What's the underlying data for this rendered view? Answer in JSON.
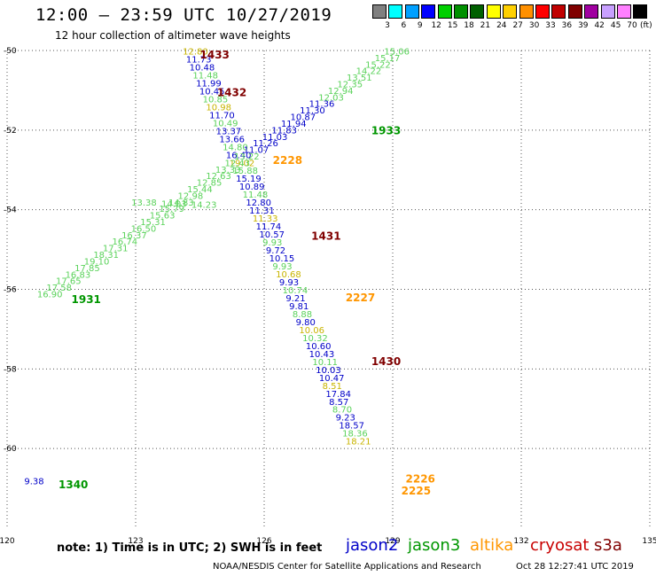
{
  "header": {
    "title": "12:00 – 23:59 UTC 10/27/2019",
    "subtitle": "12 hour collection of altimeter wave heights"
  },
  "legend": {
    "unit": "(ft)",
    "swatches": [
      {
        "color": "#808080",
        "label": "3"
      },
      {
        "color": "#00ffff",
        "label": "6"
      },
      {
        "color": "#00a0ff",
        "label": "9"
      },
      {
        "color": "#0000ff",
        "label": "12"
      },
      {
        "color": "#00d000",
        "label": "15"
      },
      {
        "color": "#009000",
        "label": "18"
      },
      {
        "color": "#006000",
        "label": "21"
      },
      {
        "color": "#ffff00",
        "label": "24"
      },
      {
        "color": "#ffd000",
        "label": "27"
      },
      {
        "color": "#ff9000",
        "label": "30"
      },
      {
        "color": "#ff0000",
        "label": "33"
      },
      {
        "color": "#c00000",
        "label": "36"
      },
      {
        "color": "#800000",
        "label": "39"
      },
      {
        "color": "#a000a0",
        "label": "42"
      },
      {
        "color": "#c8a0ff",
        "label": "45"
      },
      {
        "color": "#ff80ff",
        "label": "70"
      },
      {
        "color": "#000000",
        "label": ""
      }
    ]
  },
  "map": {
    "lon_range": [
      120,
      135
    ],
    "lat_range": [
      -62,
      -50
    ],
    "lon_ticks": [
      "120",
      "123",
      "126",
      "129",
      "132",
      "135"
    ],
    "lat_ticks": [
      "-50",
      "-52",
      "-54",
      "-56",
      "-58",
      "-60"
    ],
    "colors": {
      "jason2": "#0000c8",
      "jason3": "#009600",
      "altika": "#ff9600",
      "cryosat": "#c80000",
      "s3a": "#800000",
      "light_green": "#5ad25a"
    },
    "orbit_labels": [
      {
        "text": "1433",
        "lon": 124.5,
        "lat": -50.2,
        "sat": "s3a"
      },
      {
        "text": "1432",
        "lon": 124.9,
        "lat": -51.15,
        "sat": "s3a"
      },
      {
        "text": "2228",
        "lon": 126.2,
        "lat": -52.85,
        "sat": "altika"
      },
      {
        "text": "1933",
        "lon": 128.5,
        "lat": -52.1,
        "sat": "jason3"
      },
      {
        "text": "1431",
        "lon": 127.1,
        "lat": -54.75,
        "sat": "s3a"
      },
      {
        "text": "1931",
        "lon": 121.5,
        "lat": -56.35,
        "sat": "jason3"
      },
      {
        "text": "2227",
        "lon": 127.9,
        "lat": -56.3,
        "sat": "altika"
      },
      {
        "text": "1430",
        "lon": 128.5,
        "lat": -57.9,
        "sat": "s3a"
      },
      {
        "text": "2226",
        "lon": 129.3,
        "lat": -60.85,
        "sat": "altika"
      },
      {
        "text": "2225",
        "lon": 129.2,
        "lat": -61.15,
        "sat": "altika"
      },
      {
        "text": "1340",
        "lon": 121.2,
        "lat": -61.0,
        "sat": "jason3"
      }
    ],
    "tracks": {
      "s3a_pass": {
        "start": [
          124.1,
          -50.1
        ],
        "end": [
          127.9,
          -59.9
        ],
        "color": "altika",
        "values": [
          "12.80",
          "11.73",
          "10.48",
          "11.48",
          "11.99",
          "10.45",
          "10.85",
          "10.98",
          "11.70",
          "10.49",
          "13.37",
          "13.66",
          "14.80",
          "16.40",
          "19.02",
          "15.88",
          "15.19",
          "10.89",
          "11.48",
          "12.80",
          "11.31",
          "11.33",
          "11.74",
          "10.57",
          "9.93",
          "9.72",
          "10.15",
          "9.93",
          "10.68",
          "9.93",
          "10.74",
          "9.21",
          "9.81",
          "8.88",
          "9.80",
          "10.06",
          "10.32",
          "10.60",
          "10.43",
          "10.11",
          "10.03",
          "10.47",
          "8.51",
          "17.84",
          "8.57",
          "8.70",
          "9.23",
          "18.57",
          "18.36",
          "18.21"
        ]
      },
      "jason_pass": {
        "start": [
          120.7,
          -56.2
        ],
        "end": [
          128.8,
          -50.1
        ],
        "color": "jason2",
        "values": [
          "16.90",
          "17.58",
          "17.65",
          "16.83",
          "17.85",
          "19.10",
          "18.31",
          "17.31",
          "16.74",
          "16.37",
          "16.50",
          "15.31",
          "15.63",
          "15.79",
          "14.83",
          "12.98",
          "15.44",
          "12.85",
          "12.63",
          "13.33",
          "12.43",
          "13.22",
          "11.07",
          "11.26",
          "11.03",
          "11.83",
          "11.94",
          "10.87",
          "11.30",
          "11.36",
          "12.03",
          "12.94",
          "12.35",
          "13.51",
          "14.22",
          "15.22",
          "15.17",
          "15.06"
        ]
      },
      "jason_light_indices": [
        0,
        1,
        2,
        3,
        4,
        5,
        6,
        7,
        8,
        9,
        10,
        11,
        12,
        13,
        14,
        15,
        16,
        17,
        18,
        19,
        20,
        21,
        30,
        31,
        32,
        33,
        34,
        35,
        36,
        37
      ],
      "cross_pass": {
        "start": [
          122.9,
          -53.9
        ],
        "end": [
          124.3,
          -53.95
        ],
        "color": "light_green",
        "values": [
          "13.38",
          "14.03",
          "14.23"
        ]
      }
    },
    "point_labels": [
      {
        "text": "9.38",
        "lon": 120.4,
        "lat": -60.9,
        "sat": "jason2"
      }
    ]
  },
  "footer": {
    "note": "note: 1) Time is in UTC; 2) SWH is in feet",
    "satellites": [
      {
        "name": "jason2",
        "color": "#0000c8",
        "left": 390
      },
      {
        "name": "jason3",
        "color": "#009600",
        "left": 460
      },
      {
        "name": "altika",
        "color": "#ff9600",
        "left": 530
      },
      {
        "name": "cryosat",
        "color": "#c80000",
        "left": 598
      },
      {
        "name": "s3a",
        "color": "#800000",
        "left": 670
      }
    ],
    "credit": "NOAA/NESDIS Center for Satellite Applications and Research",
    "timestamp": "Oct 28 12:27:41 UTC 2019"
  }
}
